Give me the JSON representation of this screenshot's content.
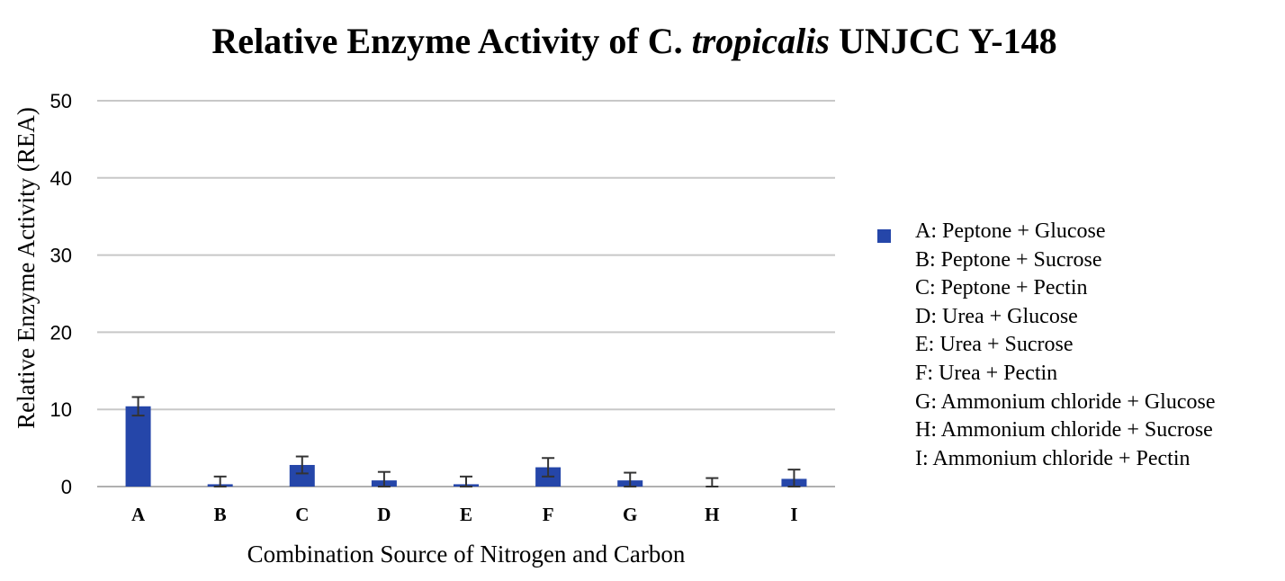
{
  "title": {
    "prefix": "Relative Enzyme Activity of C.",
    "italic": "tropicalis",
    "suffix": "UNJCC Y-148"
  },
  "chart_data": {
    "type": "bar",
    "categories": [
      "A",
      "B",
      "C",
      "D",
      "E",
      "F",
      "G",
      "H",
      "I"
    ],
    "series": [
      {
        "values": [
          10.4,
          0.3,
          2.8,
          0.8,
          0.3,
          2.5,
          0.8,
          0.0,
          1.0
        ],
        "error": [
          1.2,
          1.0,
          1.1,
          1.1,
          1.0,
          1.2,
          1.0,
          1.1,
          1.2
        ],
        "color": "#2546a9"
      }
    ],
    "ylim": [
      0,
      50
    ],
    "yticks": [
      0,
      10,
      20,
      30,
      40,
      50
    ],
    "xlabel": "Combination Source of Nitrogen and Carbon",
    "ylabel": "Relative Enzyme Activity (REA)",
    "grid": "horizontal",
    "legend_position": "right",
    "gridline_color": "#c8c8c8"
  },
  "legend": {
    "items": [
      "A: Peptone + Glucose",
      "B: Peptone + Sucrose",
      "C: Peptone + Pectin",
      "D: Urea + Glucose",
      "E: Urea + Sucrose",
      "F: Urea + Pectin",
      "G: Ammonium chloride + Glucose",
      "H: Ammonium chloride + Sucrose",
      "I: Ammonium chloride + Pectin"
    ]
  }
}
